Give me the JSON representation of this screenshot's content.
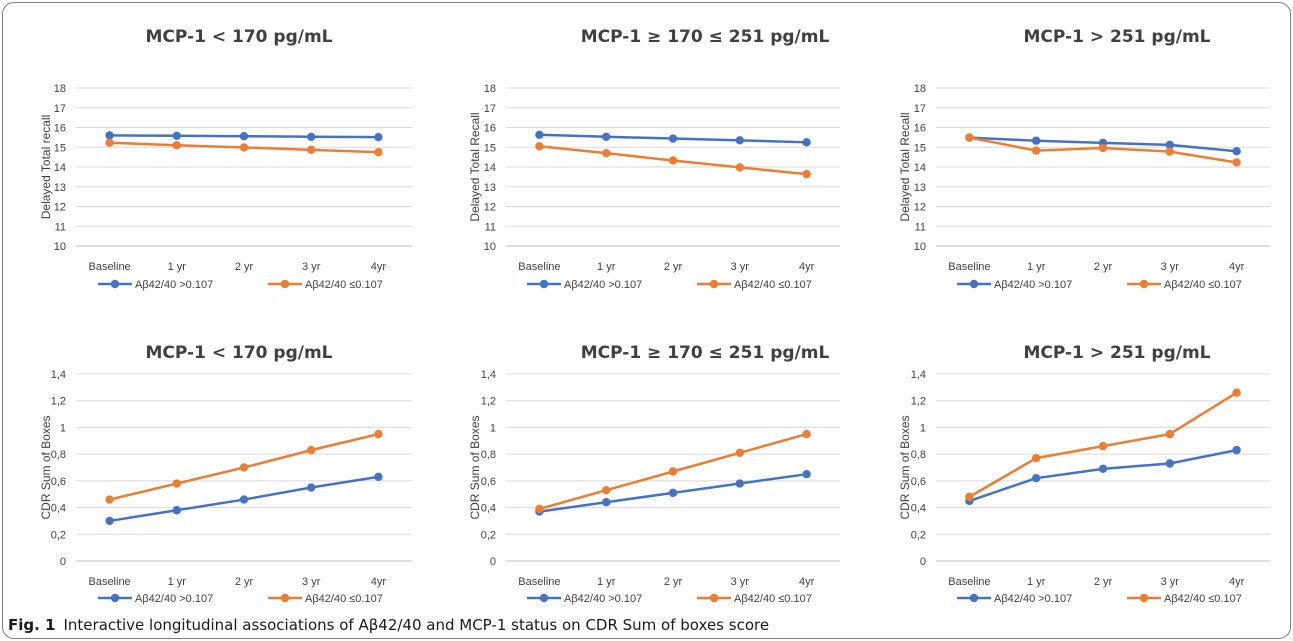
{
  "caption": {
    "label": "Fig. 1",
    "text": "Interactive longitudinal associations of Aβ42/40 and MCP-1 status on CDR Sum of boxes score"
  },
  "colors": {
    "series_high": "#4472c4",
    "series_low": "#ed7d31",
    "grid": "#d9d9d9",
    "frame": "#7f7f7f"
  },
  "chart_data": [
    {
      "type": "line",
      "title": "MCP-1 < 170 pg/mL",
      "ylabel": "Delayed Total recall",
      "categories": [
        "Baseline",
        "1 yr",
        "2 yr",
        "3 yr",
        "4yr"
      ],
      "ylim": [
        10,
        18
      ],
      "yticks": [
        "10",
        "11",
        "12",
        "13",
        "14",
        "15",
        "16",
        "17",
        "18"
      ],
      "grid": true,
      "legend_position": "bottom",
      "series": [
        {
          "name": "Aβ42/40 >0.107",
          "values": [
            15.6,
            15.58,
            15.56,
            15.53,
            15.51
          ]
        },
        {
          "name": "Aβ42/40 ≤0.107",
          "values": [
            15.23,
            15.1,
            14.99,
            14.87,
            14.75
          ]
        }
      ]
    },
    {
      "type": "line",
      "title": "MCP-1 ≥ 170 ≤ 251 pg/mL",
      "ylabel": "Delayed Total Recall",
      "categories": [
        "Baseline",
        "1 yr",
        "2 yr",
        "3 yr",
        "4yr"
      ],
      "ylim": [
        10,
        18
      ],
      "yticks": [
        "10",
        "11",
        "12",
        "13",
        "14",
        "15",
        "16",
        "17",
        "18"
      ],
      "grid": true,
      "legend_position": "bottom",
      "series": [
        {
          "name": "Aβ42/40 >0.107",
          "values": [
            15.63,
            15.53,
            15.44,
            15.35,
            15.25
          ]
        },
        {
          "name": "Aβ42/40 ≤0.107",
          "values": [
            15.05,
            14.7,
            14.33,
            13.98,
            13.64
          ]
        }
      ]
    },
    {
      "type": "line",
      "title": "MCP-1 > 251 pg/mL",
      "ylabel": "Delayed Total Recall",
      "categories": [
        "Baseline",
        "1 yr",
        "2 yr",
        "3 yr",
        "4yr"
      ],
      "ylim": [
        10,
        18
      ],
      "yticks": [
        "10",
        "11",
        "12",
        "13",
        "14",
        "15",
        "16",
        "17",
        "18"
      ],
      "grid": true,
      "legend_position": "bottom",
      "series": [
        {
          "name": "Aβ42/40 >0.107",
          "values": [
            15.49,
            15.33,
            15.22,
            15.12,
            14.8
          ]
        },
        {
          "name": "Aβ42/40 ≤0.107",
          "values": [
            15.49,
            14.83,
            14.96,
            14.78,
            14.23
          ]
        }
      ]
    },
    {
      "type": "line",
      "title": "MCP-1 < 170 pg/mL",
      "ylabel": "CDR Sum of Boxes",
      "categories": [
        "Baseline",
        "1 yr",
        "2 yr",
        "3 yr",
        "4yr"
      ],
      "ylim": [
        0,
        1.4
      ],
      "yticks": [
        "0",
        "0,2",
        "0,4",
        "0,6",
        "0,8",
        "1",
        "1,2",
        "1,4"
      ],
      "grid": true,
      "legend_position": "bottom",
      "series": [
        {
          "name": "Aβ42/40 >0.107",
          "values": [
            0.3,
            0.38,
            0.46,
            0.55,
            0.63
          ]
        },
        {
          "name": "Aβ42/40 ≤0.107",
          "values": [
            0.46,
            0.58,
            0.7,
            0.83,
            0.95
          ]
        }
      ]
    },
    {
      "type": "line",
      "title": "MCP-1 ≥ 170 ≤ 251 pg/mL",
      "ylabel": "CDR Sum of Boxes",
      "categories": [
        "Baseline",
        "1 yr",
        "2 yr",
        "3 yr",
        "4yr"
      ],
      "ylim": [
        0,
        1.4
      ],
      "yticks": [
        "0",
        "0,2",
        "0,4",
        "0,6",
        "0,8",
        "1",
        "1,2",
        "1,4"
      ],
      "grid": true,
      "legend_position": "bottom",
      "series": [
        {
          "name": "Aβ42/40 >0.107",
          "values": [
            0.37,
            0.44,
            0.51,
            0.58,
            0.65
          ]
        },
        {
          "name": "Aβ42/40 ≤0.107",
          "values": [
            0.39,
            0.53,
            0.67,
            0.81,
            0.95
          ]
        }
      ]
    },
    {
      "type": "line",
      "title": "MCP-1 > 251 pg/mL",
      "ylabel": "CDR Sum of Boxes",
      "categories": [
        "Baseline",
        "1 yr",
        "2 yr",
        "3 yr",
        "4yr"
      ],
      "ylim": [
        0,
        1.4
      ],
      "yticks": [
        "0",
        "0,2",
        "0,4",
        "0,6",
        "0,8",
        "1",
        "1,2",
        "1,4"
      ],
      "grid": true,
      "legend_position": "bottom",
      "series": [
        {
          "name": "Aβ42/40 >0.107",
          "values": [
            0.45,
            0.62,
            0.69,
            0.73,
            0.83
          ]
        },
        {
          "name": "Aβ42/40 ≤0.107",
          "values": [
            0.48,
            0.77,
            0.86,
            0.95,
            1.26
          ]
        }
      ]
    }
  ]
}
